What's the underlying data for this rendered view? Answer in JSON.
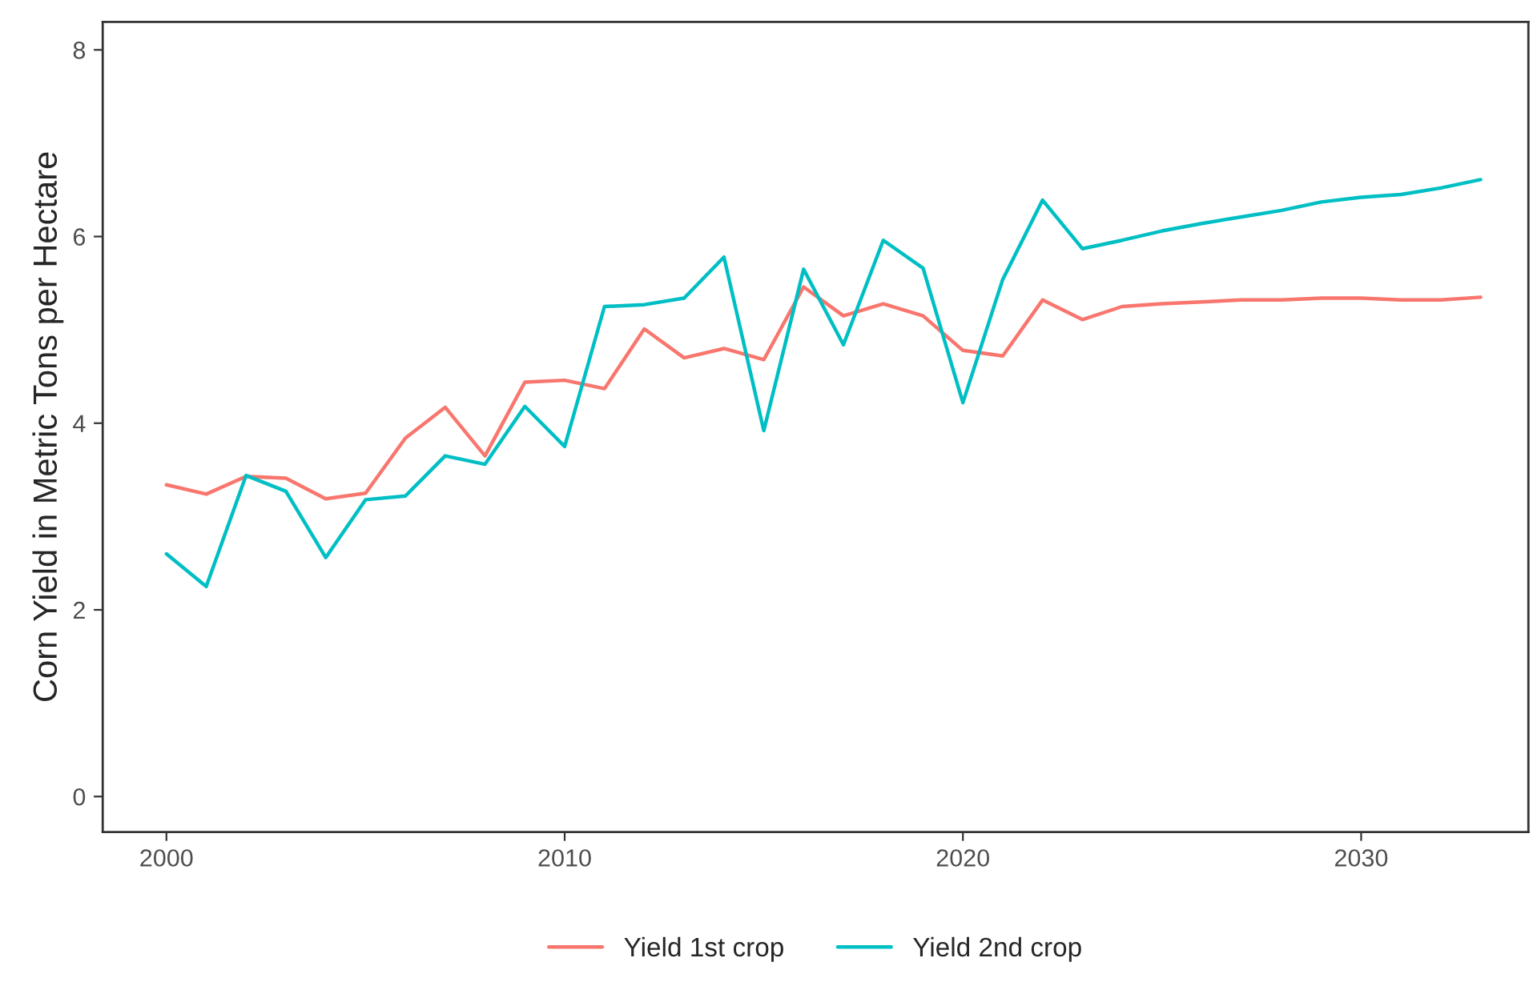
{
  "chart_data": {
    "type": "line",
    "ylabel": "Corn Yield in Metric Tons per Hectare",
    "x": [
      2000,
      2001,
      2002,
      2003,
      2004,
      2005,
      2006,
      2007,
      2008,
      2009,
      2010,
      2011,
      2012,
      2013,
      2014,
      2015,
      2016,
      2017,
      2018,
      2019,
      2020,
      2021,
      2022,
      2023,
      2024,
      2025,
      2026,
      2027,
      2028,
      2029,
      2030,
      2031,
      2032,
      2033
    ],
    "series": [
      {
        "name": "Yield 1st crop",
        "color": "#f8766d",
        "values": [
          3.34,
          3.24,
          3.43,
          3.41,
          3.19,
          3.25,
          3.84,
          4.17,
          3.65,
          4.44,
          4.46,
          4.37,
          5.01,
          4.7,
          4.8,
          4.68,
          5.46,
          5.15,
          5.28,
          5.15,
          4.78,
          4.72,
          5.32,
          5.11,
          5.25,
          5.28,
          5.3,
          5.32,
          5.32,
          5.34,
          5.34,
          5.32,
          5.32,
          5.35
        ]
      },
      {
        "name": "Yield 2nd crop",
        "color": "#00bfc4",
        "values": [
          2.6,
          2.25,
          3.44,
          3.27,
          2.56,
          3.18,
          3.22,
          3.65,
          3.56,
          4.18,
          3.75,
          5.25,
          5.27,
          5.34,
          5.78,
          3.92,
          5.65,
          4.84,
          5.96,
          5.66,
          4.22,
          5.54,
          6.39,
          5.87,
          5.96,
          6.06,
          6.14,
          6.21,
          6.28,
          6.37,
          6.42,
          6.45,
          6.52,
          6.61
        ]
      }
    ],
    "xlim": [
      1998.4,
      2034.2
    ],
    "xticks": [
      2000,
      2010,
      2020,
      2030
    ],
    "ylim": [
      -0.38,
      8.3
    ],
    "yticks": [
      0,
      2,
      4,
      6,
      8
    ],
    "grid": false,
    "legend": "bottom",
    "line_style": "solid",
    "marker": "none"
  }
}
